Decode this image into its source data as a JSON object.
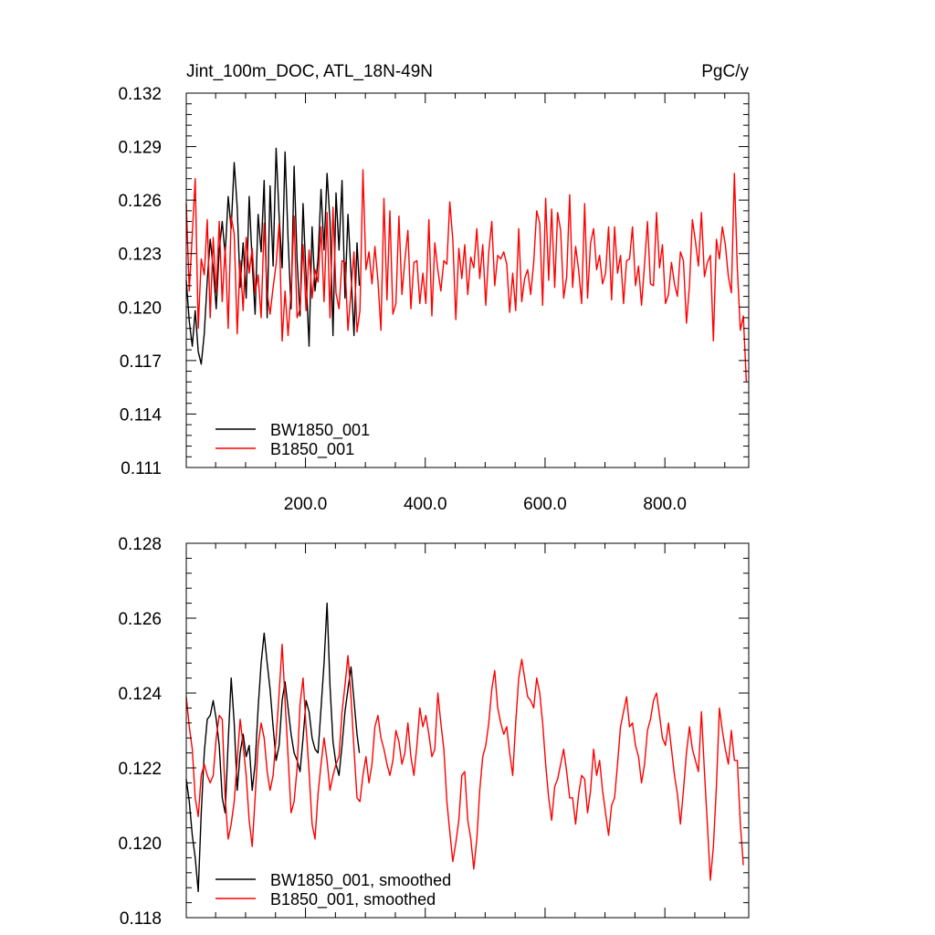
{
  "title_left": "Jint_100m_DOC, ATL_18N-49N",
  "title_right": "PgC/y",
  "chart_data": [
    {
      "type": "line",
      "title": "Jint_100m_DOC, ATL_18N-49N",
      "units": "PgC/y",
      "xlim": [
        1,
        940
      ],
      "ylim": [
        0.111,
        0.132
      ],
      "x_ticks": [
        200,
        400,
        600,
        800
      ],
      "x_tick_labels": [
        "200.0",
        "400.0",
        "600.0",
        "800.0"
      ],
      "y_ticks": [
        0.111,
        0.114,
        0.117,
        0.12,
        0.123,
        0.126,
        0.129,
        0.132
      ],
      "y_tick_labels": [
        "0.111",
        "0.114",
        "0.117",
        "0.120",
        "0.123",
        "0.126",
        "0.129",
        "0.132"
      ],
      "legend_position": "bottom-left",
      "series": [
        {
          "name": "BW1850_001",
          "color": "#000000",
          "x_start": 1,
          "x_end": 290,
          "step": 5,
          "values": [
            0.1215,
            0.1192,
            0.1178,
            0.1198,
            0.1175,
            0.1168,
            0.1185,
            0.1215,
            0.1238,
            0.1222,
            0.1199,
            0.1232,
            0.1248,
            0.1229,
            0.1262,
            0.1244,
            0.1281,
            0.1256,
            0.1211,
            0.1236,
            0.1205,
            0.1262,
            0.1225,
            0.1196,
            0.1252,
            0.1231,
            0.1271,
            0.1194,
            0.1268,
            0.1223,
            0.1289,
            0.1251,
            0.1222,
            0.1287,
            0.1238,
            0.1199,
            0.1279,
            0.1226,
            0.1195,
            0.1258,
            0.1217,
            0.1178,
            0.1245,
            0.1209,
            0.1227,
            0.1266,
            0.1232,
            0.1275,
            0.1248,
            0.1184,
            0.1264,
            0.1232,
            0.1271,
            0.1205,
            0.1252,
            0.1219,
            0.1184,
            0.1236,
            0.1212
          ]
        },
        {
          "name": "B1850_001",
          "color": "#ff0000",
          "x_start": 1,
          "x_end": 940,
          "step": 5,
          "values": [
            0.1258,
            0.1209,
            0.1241,
            0.1272,
            0.1188,
            0.1227,
            0.1218,
            0.1249,
            0.1194,
            0.1239,
            0.1208,
            0.1248,
            0.1203,
            0.1234,
            0.1188,
            0.1251,
            0.1241,
            0.1185,
            0.1226,
            0.1198,
            0.1239,
            0.1219,
            0.1233,
            0.1208,
            0.1218,
            0.1194,
            0.1247,
            0.1208,
            0.1196,
            0.1211,
            0.1224,
            0.1247,
            0.1181,
            0.1209,
            0.1184,
            0.1209,
            0.1251,
            0.1194,
            0.1199,
            0.1235,
            0.1198,
            0.1232,
            0.1205,
            0.1221,
            0.1214,
            0.1245,
            0.1203,
            0.1253,
            0.1194,
            0.1256,
            0.1208,
            0.1199,
            0.1226,
            0.1225,
            0.1187,
            0.1209,
            0.1231,
            0.1186,
            0.1198,
            0.1277,
            0.1221,
            0.1231,
            0.1213,
            0.1234,
            0.1215,
            0.1187,
            0.1261,
            0.1204,
            0.1254,
            0.1196,
            0.1202,
            0.1251,
            0.1207,
            0.1226,
            0.1243,
            0.1199,
            0.1225,
            0.1226,
            0.1202,
            0.1219,
            0.1202,
            0.1249,
            0.1195,
            0.1236,
            0.1221,
            0.1209,
            0.1226,
            0.1224,
            0.1259,
            0.1238,
            0.1193,
            0.1233,
            0.1216,
            0.1235,
            0.1207,
            0.1228,
            0.1222,
            0.1244,
            0.1216,
            0.1235,
            0.1201,
            0.1231,
            0.1248,
            0.1212,
            0.1229,
            0.1227,
            0.1231,
            0.1224,
            0.1197,
            0.1219,
            0.1198,
            0.1244,
            0.1203,
            0.1216,
            0.1221,
            0.1207,
            0.1225,
            0.1254,
            0.1247,
            0.1201,
            0.1261,
            0.1215,
            0.1255,
            0.1211,
            0.1253,
            0.1243,
            0.1205,
            0.1217,
            0.1263,
            0.1211,
            0.1234,
            0.1221,
            0.1202,
            0.1258,
            0.1205,
            0.1236,
            0.1244,
            0.1221,
            0.1229,
            0.1213,
            0.1219,
            0.1245,
            0.1204,
            0.1245,
            0.1219,
            0.1229,
            0.1202,
            0.1226,
            0.1227,
            0.1245,
            0.1212,
            0.1223,
            0.1201,
            0.1224,
            0.1248,
            0.1213,
            0.1212,
            0.1253,
            0.1222,
            0.1235,
            0.1202,
            0.1207,
            0.1225,
            0.1213,
            0.1206,
            0.1231,
            0.1226,
            0.1191,
            0.1212,
            0.1249,
            0.1237,
            0.1223,
            0.1253,
            0.1217,
            0.1225,
            0.1229,
            0.1181,
            0.1238,
            0.1227,
            0.1245,
            0.1235,
            0.1217,
            0.1208,
            0.1275,
            0.1222,
            0.1187,
            0.1195,
            0.1158
          ]
        }
      ]
    },
    {
      "type": "line",
      "xlim": [
        1,
        940
      ],
      "ylim": [
        0.118,
        0.128
      ],
      "y_ticks": [
        0.118,
        0.12,
        0.122,
        0.124,
        0.126,
        0.128
      ],
      "y_tick_labels": [
        "0.118",
        "0.120",
        "0.122",
        "0.124",
        "0.126",
        "0.128"
      ],
      "legend_position": "bottom-left",
      "series": [
        {
          "name": "BW1850_001, smoothed",
          "color": "#000000",
          "x_start": 1,
          "x_end": 290,
          "step": 5,
          "values": [
            0.1217,
            0.1211,
            0.1202,
            0.1196,
            0.1187,
            0.1208,
            0.1224,
            0.1233,
            0.1234,
            0.1238,
            0.1233,
            0.1226,
            0.1212,
            0.1208,
            0.1227,
            0.1244,
            0.1232,
            0.1214,
            0.1224,
            0.1229,
            0.1223,
            0.1226,
            0.1214,
            0.1221,
            0.1236,
            0.1248,
            0.1256,
            0.1248,
            0.1241,
            0.1231,
            0.1222,
            0.1226,
            0.1238,
            0.1243,
            0.1236,
            0.1229,
            0.1224,
            0.1222,
            0.1219,
            0.1228,
            0.1238,
            0.1235,
            0.1228,
            0.1225,
            0.1224,
            0.1236,
            0.1248,
            0.1264,
            0.1242,
            0.1227,
            0.1221,
            0.1218,
            0.1226,
            0.1235,
            0.1241,
            0.1247,
            0.1238,
            0.1229,
            0.1224
          ]
        },
        {
          "name": "B1850_001, smoothed",
          "color": "#ff0000",
          "x_start": 1,
          "x_end": 940,
          "step": 5,
          "values": [
            0.1239,
            0.1231,
            0.1225,
            0.1212,
            0.1207,
            0.1218,
            0.1221,
            0.1218,
            0.1216,
            0.1218,
            0.1228,
            0.1234,
            0.1233,
            0.1212,
            0.1201,
            0.1205,
            0.1211,
            0.1222,
            0.1233,
            0.1226,
            0.1218,
            0.1206,
            0.1199,
            0.1212,
            0.1226,
            0.1232,
            0.1228,
            0.1219,
            0.1214,
            0.1218,
            0.1228,
            0.124,
            0.1253,
            0.1238,
            0.1223,
            0.1208,
            0.1211,
            0.122,
            0.1237,
            0.1244,
            0.1231,
            0.1219,
            0.1205,
            0.1201,
            0.1213,
            0.1221,
            0.1228,
            0.1222,
            0.1214,
            0.1218,
            0.1221,
            0.1223,
            0.1235,
            0.1242,
            0.125,
            0.1239,
            0.1225,
            0.1212,
            0.1211,
            0.1218,
            0.1223,
            0.1216,
            0.1221,
            0.1231,
            0.1234,
            0.1228,
            0.1225,
            0.1221,
            0.1218,
            0.1222,
            0.123,
            0.1227,
            0.1221,
            0.1224,
            0.1232,
            0.1223,
            0.1218,
            0.1226,
            0.1236,
            0.1231,
            0.1234,
            0.1229,
            0.1223,
            0.1225,
            0.124,
            0.1232,
            0.1225,
            0.1211,
            0.1203,
            0.1195,
            0.12,
            0.1206,
            0.1218,
            0.1219,
            0.1206,
            0.1201,
            0.1193,
            0.1201,
            0.1214,
            0.1223,
            0.1226,
            0.1232,
            0.1241,
            0.1246,
            0.1236,
            0.1232,
            0.1229,
            0.1231,
            0.1224,
            0.1218,
            0.1232,
            0.1244,
            0.1249,
            0.1244,
            0.1239,
            0.1238,
            0.1236,
            0.1244,
            0.124,
            0.1232,
            0.1221,
            0.1212,
            0.1206,
            0.1215,
            0.1217,
            0.1221,
            0.1225,
            0.1219,
            0.1212,
            0.1212,
            0.1205,
            0.1213,
            0.1218,
            0.1217,
            0.1208,
            0.1214,
            0.1225,
            0.1218,
            0.1222,
            0.1214,
            0.1208,
            0.1202,
            0.121,
            0.1212,
            0.1221,
            0.1231,
            0.1235,
            0.1239,
            0.1231,
            0.1232,
            0.1226,
            0.1223,
            0.1216,
            0.1221,
            0.123,
            0.1233,
            0.1238,
            0.124,
            0.1234,
            0.1228,
            0.1226,
            0.1232,
            0.1225,
            0.1218,
            0.1213,
            0.1205,
            0.1214,
            0.1224,
            0.1231,
            0.1225,
            0.1222,
            0.1219,
            0.1235,
            0.1219,
            0.1205,
            0.119,
            0.1199,
            0.1215,
            0.1236,
            0.123,
            0.1225,
            0.1221,
            0.123,
            0.1222,
            0.1222,
            0.1205,
            0.1194
          ]
        }
      ]
    }
  ]
}
